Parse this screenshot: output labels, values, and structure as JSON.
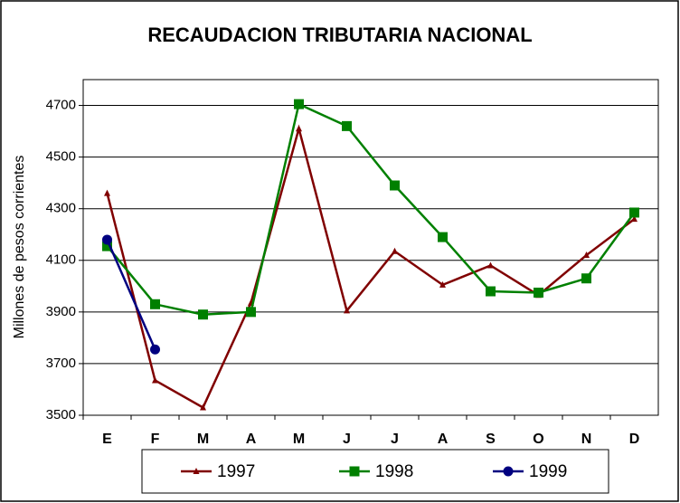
{
  "chart_data": {
    "type": "line",
    "title": "RECAUDACION TRIBUTARIA NACIONAL",
    "y_label": "Millones de pesos corrientes",
    "categories": [
      "E",
      "F",
      "M",
      "A",
      "M",
      "J",
      "J",
      "A",
      "S",
      "O",
      "N",
      "D"
    ],
    "series": [
      {
        "name": "1997",
        "color": "#800000",
        "marker": "triangle",
        "values": [
          4360,
          3635,
          3530,
          3935,
          4610,
          3905,
          4135,
          4005,
          4080,
          3965,
          4120,
          4260
        ]
      },
      {
        "name": "1998",
        "color": "#008000",
        "marker": "square",
        "values": [
          4155,
          3930,
          3890,
          3900,
          4705,
          4620,
          4390,
          4190,
          3980,
          3975,
          4030,
          4285
        ]
      },
      {
        "name": "1999",
        "color": "#000080",
        "marker": "circle",
        "values": [
          4180,
          3755,
          null,
          null,
          null,
          null,
          null,
          null,
          null,
          null,
          null,
          null
        ]
      }
    ],
    "ylim": [
      3500,
      4800
    ],
    "yticks": [
      3500,
      3700,
      3900,
      4100,
      4300,
      4500,
      4700
    ],
    "grid": true,
    "legend": "bottom"
  }
}
